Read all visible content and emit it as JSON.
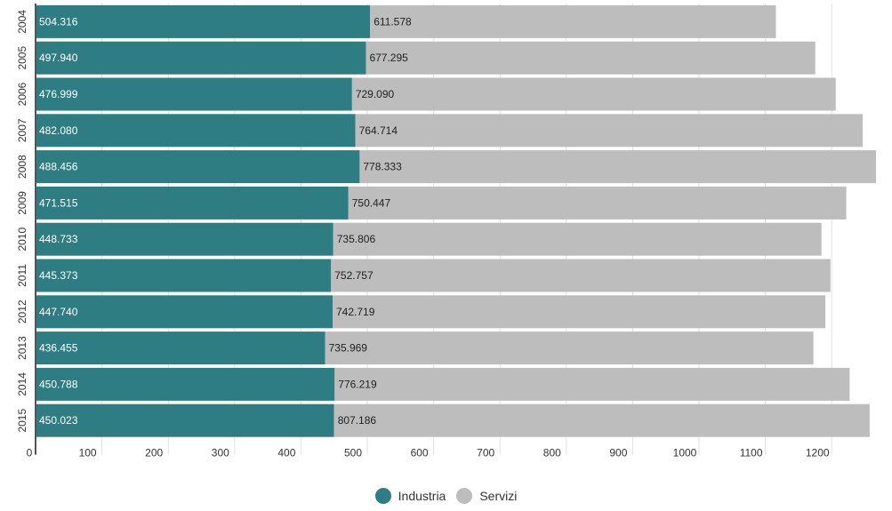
{
  "chart_data": {
    "type": "bar",
    "orientation": "horizontal",
    "stacked": true,
    "categories": [
      "2004",
      "2005",
      "2006",
      "2007",
      "2008",
      "2009",
      "2010",
      "2011",
      "2012",
      "2013",
      "2014",
      "2015"
    ],
    "series": [
      {
        "name": "Industria",
        "color": "#2e7d83",
        "values": [
          504.316,
          497.94,
          476.999,
          482.08,
          488.456,
          471.515,
          448.733,
          445.373,
          447.74,
          436.455,
          450.788,
          450.023
        ],
        "labels": [
          "504.316",
          "497.940",
          "476.999",
          "482.080",
          "488.456",
          "471.515",
          "448.733",
          "445.373",
          "447.740",
          "436.455",
          "450.788",
          "450.023"
        ]
      },
      {
        "name": "Servizi",
        "color": "#bdbdbd",
        "values": [
          611.578,
          677.295,
          729.09,
          764.714,
          778.333,
          750.447,
          735.806,
          752.757,
          742.719,
          735.969,
          776.219,
          807.186
        ],
        "labels": [
          "611.578",
          "677.295",
          "729.090",
          "764.714",
          "778.333",
          "750.447",
          "735.806",
          "752.757",
          "742.719",
          "735.969",
          "776.219",
          "807.186"
        ]
      }
    ],
    "xlim": [
      0,
      1270
    ],
    "xticks": [
      0,
      100,
      200,
      300,
      400,
      500,
      600,
      700,
      800,
      900,
      1000,
      1100,
      1200
    ],
    "xtick_labels": [
      "0",
      "100",
      "200",
      "300",
      "400",
      "500",
      "600",
      "700",
      "800",
      "900",
      "1000",
      "1100",
      "1200"
    ],
    "grid": true,
    "legend_position": "bottom-center",
    "title": "",
    "xlabel": "",
    "ylabel": ""
  }
}
